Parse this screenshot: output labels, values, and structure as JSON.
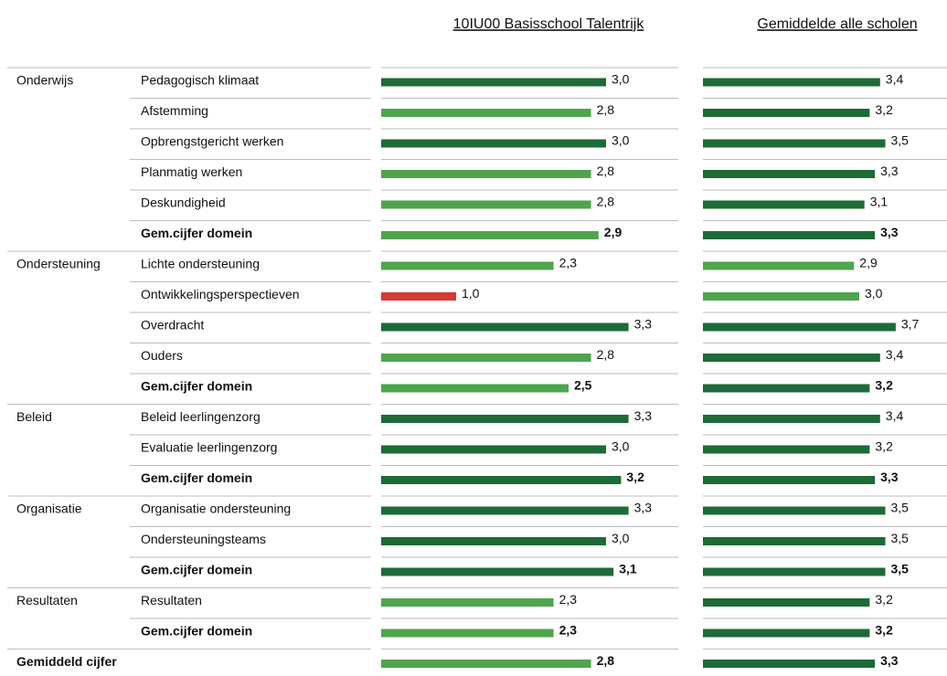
{
  "header": {
    "school": "10IU00 Basisschool Talentrijk",
    "average": "Gemiddelde alle scholen"
  },
  "xlim": [
    0,
    4
  ],
  "groups": [
    {
      "name": "Onderwijs",
      "rows": [
        {
          "label": "Pedagogisch klimaat",
          "bold": false,
          "school": {
            "value": 3.0,
            "label": "3,0",
            "color": "#1d6b36"
          },
          "average": {
            "value": 3.4,
            "label": "3,4",
            "color": "#1d6b36"
          }
        },
        {
          "label": "Afstemming",
          "bold": false,
          "school": {
            "value": 2.8,
            "label": "2,8",
            "color": "#4ea54d"
          },
          "average": {
            "value": 3.2,
            "label": "3,2",
            "color": "#1d6b36"
          }
        },
        {
          "label": "Opbrengstgericht werken",
          "bold": false,
          "school": {
            "value": 3.0,
            "label": "3,0",
            "color": "#1d6b36"
          },
          "average": {
            "value": 3.5,
            "label": "3,5",
            "color": "#1d6b36"
          }
        },
        {
          "label": "Planmatig werken",
          "bold": false,
          "school": {
            "value": 2.8,
            "label": "2,8",
            "color": "#4ea54d"
          },
          "average": {
            "value": 3.3,
            "label": "3,3",
            "color": "#1d6b36"
          }
        },
        {
          "label": "Deskundigheid",
          "bold": false,
          "school": {
            "value": 2.8,
            "label": "2,8",
            "color": "#4ea54d"
          },
          "average": {
            "value": 3.1,
            "label": "3,1",
            "color": "#1d6b36"
          }
        },
        {
          "label": "Gem.cijfer domein",
          "bold": true,
          "school": {
            "value": 2.9,
            "label": "2,9",
            "color": "#4ea54d"
          },
          "average": {
            "value": 3.3,
            "label": "3,3",
            "color": "#1d6b36"
          }
        }
      ]
    },
    {
      "name": "Ondersteuning",
      "rows": [
        {
          "label": "Lichte ondersteuning",
          "bold": false,
          "school": {
            "value": 2.3,
            "label": "2,3",
            "color": "#4ea54d"
          },
          "average": {
            "value": 2.9,
            "label": "2,9",
            "color": "#4ea54d"
          }
        },
        {
          "label": "Ontwikkelingsperspectieven",
          "bold": false,
          "school": {
            "value": 1.0,
            "label": "1,0",
            "color": "#d63a32"
          },
          "average": {
            "value": 3.0,
            "label": "3,0",
            "color": "#4ea54d"
          }
        },
        {
          "label": "Overdracht",
          "bold": false,
          "school": {
            "value": 3.3,
            "label": "3,3",
            "color": "#1d6b36"
          },
          "average": {
            "value": 3.7,
            "label": "3,7",
            "color": "#1d6b36"
          }
        },
        {
          "label": "Ouders",
          "bold": false,
          "school": {
            "value": 2.8,
            "label": "2,8",
            "color": "#4ea54d"
          },
          "average": {
            "value": 3.4,
            "label": "3,4",
            "color": "#1d6b36"
          }
        },
        {
          "label": "Gem.cijfer domein",
          "bold": true,
          "school": {
            "value": 2.5,
            "label": "2,5",
            "color": "#4ea54d"
          },
          "average": {
            "value": 3.2,
            "label": "3,2",
            "color": "#1d6b36"
          }
        }
      ]
    },
    {
      "name": "Beleid",
      "rows": [
        {
          "label": "Beleid leerlingenzorg",
          "bold": false,
          "school": {
            "value": 3.3,
            "label": "3,3",
            "color": "#1d6b36"
          },
          "average": {
            "value": 3.4,
            "label": "3,4",
            "color": "#1d6b36"
          }
        },
        {
          "label": "Evaluatie leerlingenzorg",
          "bold": false,
          "school": {
            "value": 3.0,
            "label": "3,0",
            "color": "#1d6b36"
          },
          "average": {
            "value": 3.2,
            "label": "3,2",
            "color": "#1d6b36"
          }
        },
        {
          "label": "Gem.cijfer domein",
          "bold": true,
          "school": {
            "value": 3.2,
            "label": "3,2",
            "color": "#1d6b36"
          },
          "average": {
            "value": 3.3,
            "label": "3,3",
            "color": "#1d6b36"
          }
        }
      ]
    },
    {
      "name": "Organisatie",
      "rows": [
        {
          "label": "Organisatie ondersteuning",
          "bold": false,
          "school": {
            "value": 3.3,
            "label": "3,3",
            "color": "#1d6b36"
          },
          "average": {
            "value": 3.5,
            "label": "3,5",
            "color": "#1d6b36"
          }
        },
        {
          "label": "Ondersteuningsteams",
          "bold": false,
          "school": {
            "value": 3.0,
            "label": "3,0",
            "color": "#1d6b36"
          },
          "average": {
            "value": 3.5,
            "label": "3,5",
            "color": "#1d6b36"
          }
        },
        {
          "label": "Gem.cijfer domein",
          "bold": true,
          "school": {
            "value": 3.1,
            "label": "3,1",
            "color": "#1d6b36"
          },
          "average": {
            "value": 3.5,
            "label": "3,5",
            "color": "#1d6b36"
          }
        }
      ]
    },
    {
      "name": "Resultaten",
      "rows": [
        {
          "label": "Resultaten",
          "bold": false,
          "school": {
            "value": 2.3,
            "label": "2,3",
            "color": "#4ea54d"
          },
          "average": {
            "value": 3.2,
            "label": "3,2",
            "color": "#1d6b36"
          }
        },
        {
          "label": "Gem.cijfer domein",
          "bold": true,
          "school": {
            "value": 2.3,
            "label": "2,3",
            "color": "#4ea54d"
          },
          "average": {
            "value": 3.2,
            "label": "3,2",
            "color": "#1d6b36"
          }
        }
      ]
    }
  ],
  "total": {
    "label": "Gemiddeld cijfer",
    "bold": true,
    "school": {
      "value": 2.8,
      "label": "2,8",
      "color": "#4ea54d"
    },
    "average": {
      "value": 3.3,
      "label": "3,3",
      "color": "#1d6b36"
    }
  }
}
